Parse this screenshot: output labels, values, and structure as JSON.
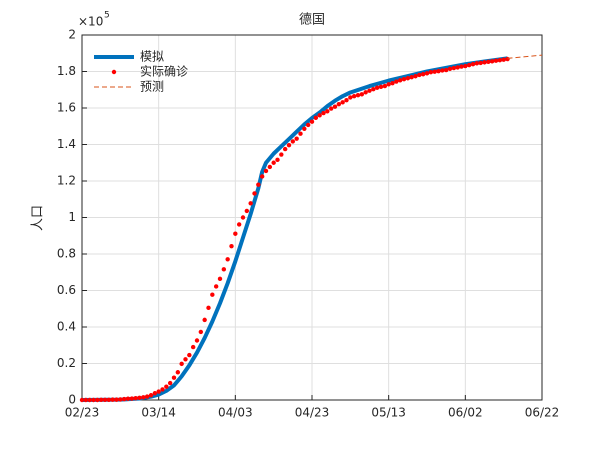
{
  "chart_data": {
    "type": "line",
    "title": "德国",
    "ylabel": "人口",
    "y_scale_base": "×10",
    "y_scale_exponent": "5",
    "xlim": [
      0,
      120
    ],
    "xticks": [
      {
        "value": 0,
        "label": "02/23"
      },
      {
        "value": 20,
        "label": "03/14"
      },
      {
        "value": 40,
        "label": "04/03"
      },
      {
        "value": 60,
        "label": "04/23"
      },
      {
        "value": 80,
        "label": "05/13"
      },
      {
        "value": 100,
        "label": "06/02"
      },
      {
        "value": 120,
        "label": "06/22"
      }
    ],
    "ylim": [
      0,
      2
    ],
    "yticks": [
      0,
      0.2,
      0.4,
      0.6,
      0.8,
      1,
      1.2,
      1.4,
      1.6,
      1.8,
      2
    ],
    "grid": true,
    "legend": "upper-left",
    "series": [
      {
        "name": "模拟",
        "color": "#0072bd",
        "style": "line",
        "x": [
          0,
          10,
          15,
          18,
          20,
          22,
          24,
          26,
          28,
          30,
          32,
          34,
          36,
          38,
          40,
          42,
          44,
          46,
          47,
          48,
          50,
          52,
          54,
          56,
          58,
          60,
          62,
          64,
          66,
          68,
          70,
          75,
          80,
          85,
          90,
          95,
          100,
          105,
          111
        ],
        "values": [
          0,
          0.002,
          0.008,
          0.018,
          0.03,
          0.05,
          0.08,
          0.13,
          0.19,
          0.26,
          0.34,
          0.43,
          0.53,
          0.64,
          0.76,
          0.89,
          1.02,
          1.16,
          1.25,
          1.3,
          1.35,
          1.39,
          1.43,
          1.47,
          1.51,
          1.545,
          1.575,
          1.61,
          1.64,
          1.665,
          1.685,
          1.72,
          1.75,
          1.775,
          1.8,
          1.82,
          1.84,
          1.855,
          1.872
        ]
      },
      {
        "name": "实际确诊",
        "color": "#ff0000",
        "style": "dots",
        "x": [
          0,
          1,
          2,
          3,
          4,
          5,
          6,
          7,
          8,
          9,
          10,
          11,
          12,
          13,
          14,
          15,
          16,
          17,
          18,
          19,
          20,
          21,
          22,
          23,
          24,
          25,
          26,
          27,
          28,
          29,
          30,
          31,
          32,
          33,
          34,
          35,
          36,
          37,
          38,
          39,
          40,
          41,
          42,
          43,
          44,
          45,
          46,
          47,
          48,
          49,
          50,
          51,
          52,
          53,
          54,
          55,
          56,
          57,
          58,
          59,
          60,
          61,
          62,
          63,
          64,
          65,
          66,
          67,
          68,
          69,
          70,
          71,
          72,
          73,
          74,
          75,
          76,
          77,
          78,
          79,
          80,
          81,
          82,
          83,
          84,
          85,
          86,
          87,
          88,
          89,
          90,
          91,
          92,
          93,
          94,
          95,
          96,
          97,
          98,
          99,
          100,
          101,
          102,
          103,
          104,
          105,
          106,
          107,
          108,
          109,
          110,
          111
        ],
        "values": [
          0,
          0,
          0,
          0,
          0,
          0.001,
          0.001,
          0.001,
          0.002,
          0.002,
          0.003,
          0.005,
          0.007,
          0.008,
          0.01,
          0.012,
          0.015,
          0.019,
          0.026,
          0.037,
          0.046,
          0.058,
          0.073,
          0.093,
          0.122,
          0.152,
          0.198,
          0.223,
          0.246,
          0.29,
          0.326,
          0.373,
          0.439,
          0.505,
          0.577,
          0.622,
          0.664,
          0.716,
          0.771,
          0.843,
          0.911,
          0.962,
          1,
          1.036,
          1.078,
          1.132,
          1.18,
          1.225,
          1.255,
          1.277,
          1.3,
          1.316,
          1.345,
          1.375,
          1.396,
          1.417,
          1.432,
          1.459,
          1.486,
          1.507,
          1.525,
          1.546,
          1.56,
          1.572,
          1.582,
          1.597,
          1.607,
          1.621,
          1.631,
          1.643,
          1.658,
          1.665,
          1.67,
          1.675,
          1.686,
          1.695,
          1.703,
          1.711,
          1.716,
          1.72,
          1.73,
          1.736,
          1.745,
          1.752,
          1.758,
          1.763,
          1.769,
          1.774,
          1.781,
          1.785,
          1.79,
          1.796,
          1.799,
          1.802,
          1.806,
          1.808,
          1.815,
          1.819,
          1.822,
          1.827,
          1.83,
          1.835,
          1.84,
          1.845,
          1.847,
          1.85,
          1.853,
          1.856,
          1.859,
          1.862,
          1.865,
          1.868
        ]
      },
      {
        "name": "预测",
        "color": "#d95319",
        "style": "dashed",
        "x": [
          111,
          120
        ],
        "values": [
          1.872,
          1.89
        ]
      }
    ]
  }
}
